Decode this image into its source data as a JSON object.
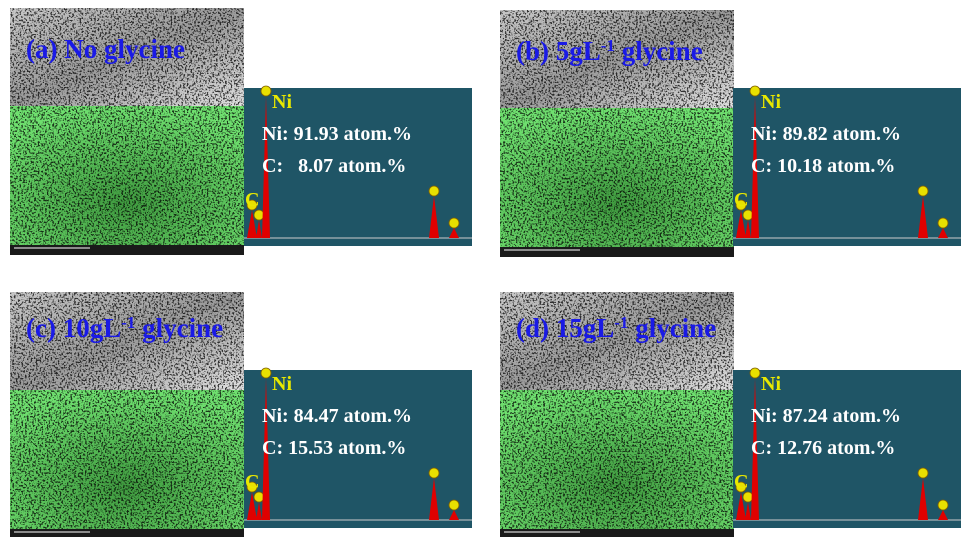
{
  "panels": [
    {
      "title": [
        "(a) No glycine"
      ],
      "peak_ni": "Ni",
      "peak_c": "C",
      "ni_value": "Ni: 91.93 atom.%",
      "c_value": "C:   8.07 atom.%"
    },
    {
      "title": [
        "(b) 5gL",
        "-1",
        " glycine"
      ],
      "peak_ni": "Ni",
      "peak_c": "C",
      "ni_value": "Ni: 89.82 atom.%",
      "c_value": "C: 10.18 atom.%"
    },
    {
      "title": [
        "(c) 10gL",
        "-1",
        " glycine"
      ],
      "peak_ni": "Ni",
      "peak_c": "C",
      "ni_value": "Ni: 84.47 atom.%",
      "c_value": "C: 15.53 atom.%"
    },
    {
      "title": [
        "(d) 15gL",
        "-1",
        " glycine"
      ],
      "peak_ni": "Ni",
      "peak_c": "C",
      "ni_value": "Ni: 87.24 atom.%",
      "c_value": "C: 12.76 atom.%"
    }
  ]
}
